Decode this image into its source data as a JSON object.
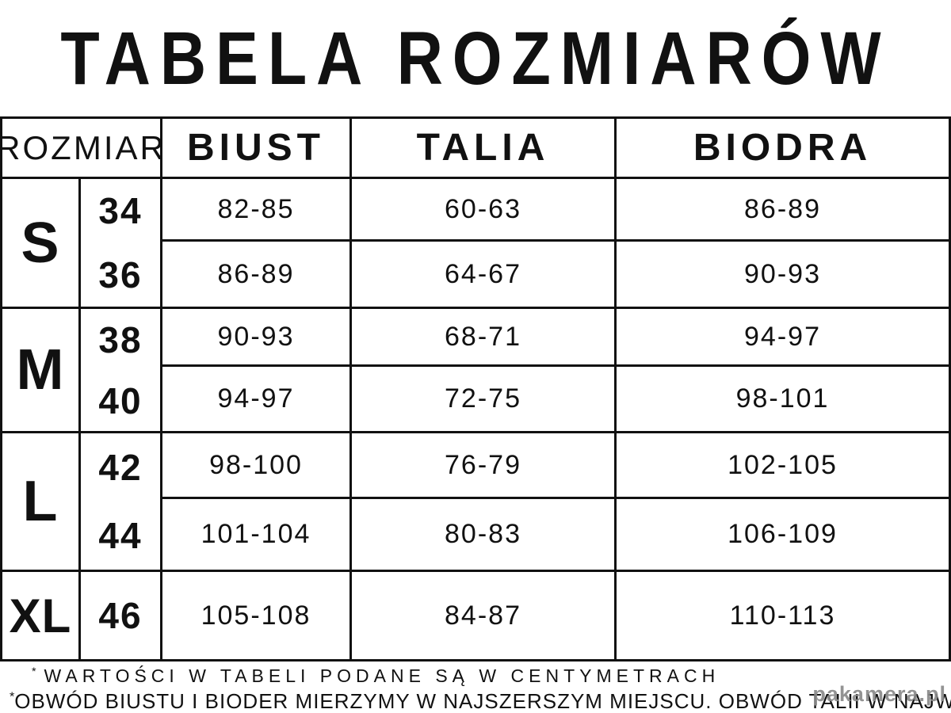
{
  "title": "TABELA ROZMIARÓW",
  "table": {
    "headers": {
      "size": "ROZMIAR",
      "bust": "BIUST",
      "waist": "TALIA",
      "hips": "BIODRA"
    },
    "groups": [
      {
        "letter": "S",
        "rows": [
          {
            "number": "34",
            "bust": "82-85",
            "waist": "60-63",
            "hips": "86-89"
          },
          {
            "number": "36",
            "bust": "86-89",
            "waist": "64-67",
            "hips": "90-93"
          }
        ]
      },
      {
        "letter": "M",
        "rows": [
          {
            "number": "38",
            "bust": "90-93",
            "waist": "68-71",
            "hips": "94-97"
          },
          {
            "number": "40",
            "bust": "94-97",
            "waist": "72-75",
            "hips": "98-101"
          }
        ]
      },
      {
        "letter": "L",
        "rows": [
          {
            "number": "42",
            "bust": "98-100",
            "waist": "76-79",
            "hips": "102-105"
          },
          {
            "number": "44",
            "bust": "101-104",
            "waist": "80-83",
            "hips": "106-109"
          }
        ]
      },
      {
        "letter": "XL",
        "rows": [
          {
            "number": "46",
            "bust": "105-108",
            "waist": "84-87",
            "hips": "110-113"
          }
        ]
      }
    ]
  },
  "footnotes": [
    {
      "marker": "*",
      "text": "WARTOŚCI W TABELI PODANE SĄ W CENTYMETRACH"
    },
    {
      "marker": "*",
      "text": "OBWÓD BIUSTU I BIODER MIERZYMY W NAJSZERSZYM MIEJSCU. OBWÓD TALII W NAJWĘŻSZYM."
    }
  ],
  "watermark": "pakamera.pl",
  "units": "cm",
  "colors": {
    "text": "#111111",
    "border": "#111111",
    "background": "#ffffff",
    "watermark": "#8a8a8a"
  }
}
